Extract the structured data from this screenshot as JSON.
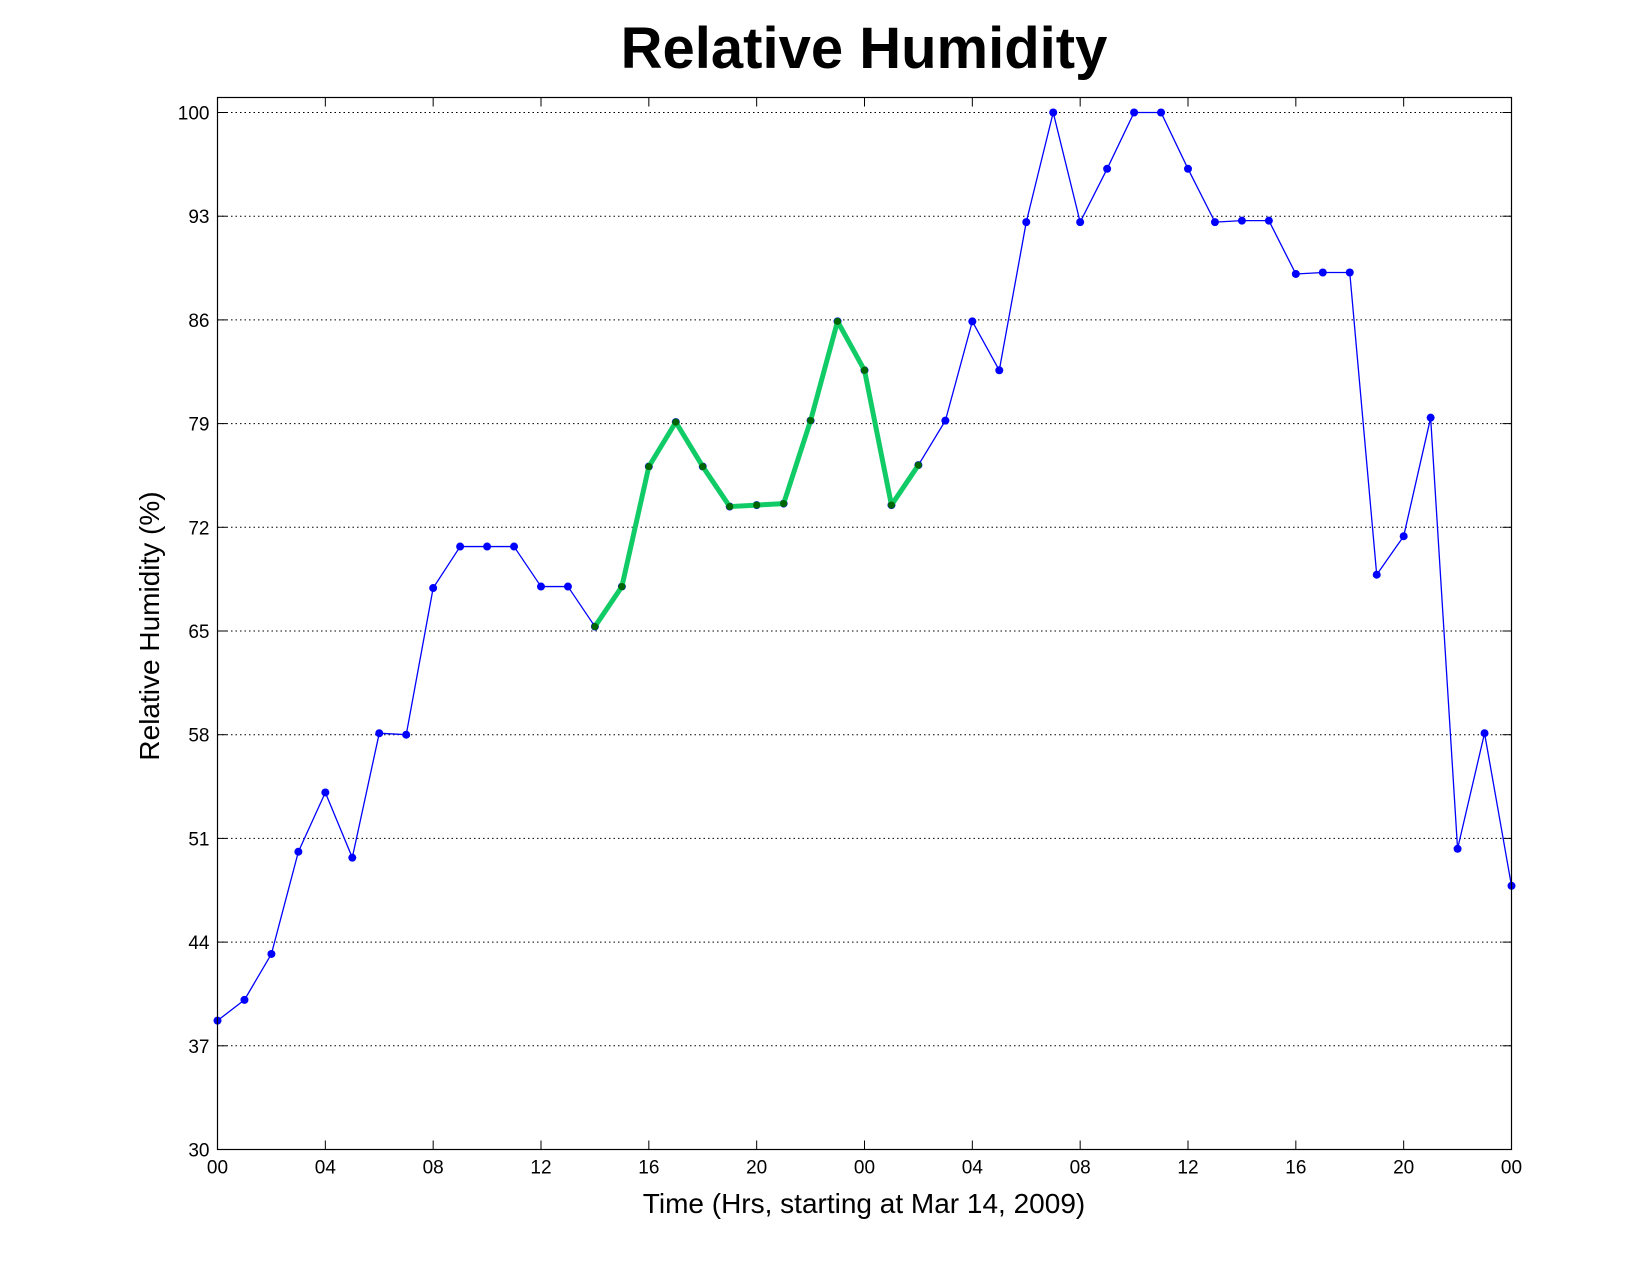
{
  "chart_data": {
    "type": "line",
    "title": "Relative Humidity",
    "xlabel": "Time (Hrs, starting at Mar 14, 2009)",
    "ylabel": "Relative Humidity (%)",
    "xlim": [
      0,
      48
    ],
    "ylim": [
      30,
      100
    ],
    "grid": "y-only",
    "x_tick_values": [
      0,
      4,
      8,
      12,
      16,
      20,
      24,
      28,
      32,
      36,
      40,
      44,
      48
    ],
    "x_tick_labels": [
      "00",
      "04",
      "08",
      "12",
      "16",
      "20",
      "00",
      "04",
      "08",
      "12",
      "16",
      "20",
      "00"
    ],
    "y_tick_values": [
      30,
      37,
      44,
      51,
      58,
      65,
      72,
      79,
      86,
      93,
      100
    ],
    "y_tick_labels": [
      "30",
      "37",
      "44",
      "51",
      "58",
      "65",
      "72",
      "79",
      "86",
      "93",
      "100"
    ],
    "series": [
      {
        "color": "#0000ff",
        "marker_color": "#0000ff",
        "x": [
          0,
          1,
          2,
          3,
          4,
          5,
          6,
          7,
          8,
          9,
          10,
          11,
          12,
          13,
          14,
          15,
          16,
          17,
          18,
          19,
          20,
          21,
          22,
          23,
          24,
          25,
          26,
          27,
          28,
          29,
          30,
          31,
          32,
          33,
          34,
          35,
          36,
          37,
          38,
          39,
          40,
          41,
          42,
          43,
          44,
          45,
          46,
          47,
          48
        ],
        "values": [
          38.7,
          40.1,
          43.2,
          50.1,
          54.1,
          49.7,
          58.1,
          58.0,
          67.9,
          70.7,
          70.7,
          70.7,
          68.0,
          68.0,
          65.3,
          68.0,
          76.1,
          79.1,
          76.1,
          73.4,
          73.5,
          73.6,
          79.2,
          85.9,
          82.6,
          73.5,
          76.2,
          79.2,
          85.9,
          82.6,
          92.6,
          100.0,
          92.6,
          96.2,
          100.0,
          100.0,
          96.2,
          92.6,
          92.7,
          92.7,
          89.1,
          89.2,
          89.2,
          68.8,
          71.4,
          79.4,
          50.3,
          58.1,
          47.8
        ]
      },
      {
        "color": "#11cc66",
        "marker_color": "#006600",
        "x": [
          14,
          15,
          16,
          17,
          18,
          19,
          20,
          21,
          22,
          23,
          24,
          25,
          26
        ],
        "values": [
          65.3,
          68.0,
          76.1,
          79.1,
          76.1,
          73.4,
          73.5,
          73.6,
          79.2,
          85.9,
          82.6,
          73.5,
          76.2
        ]
      }
    ]
  }
}
